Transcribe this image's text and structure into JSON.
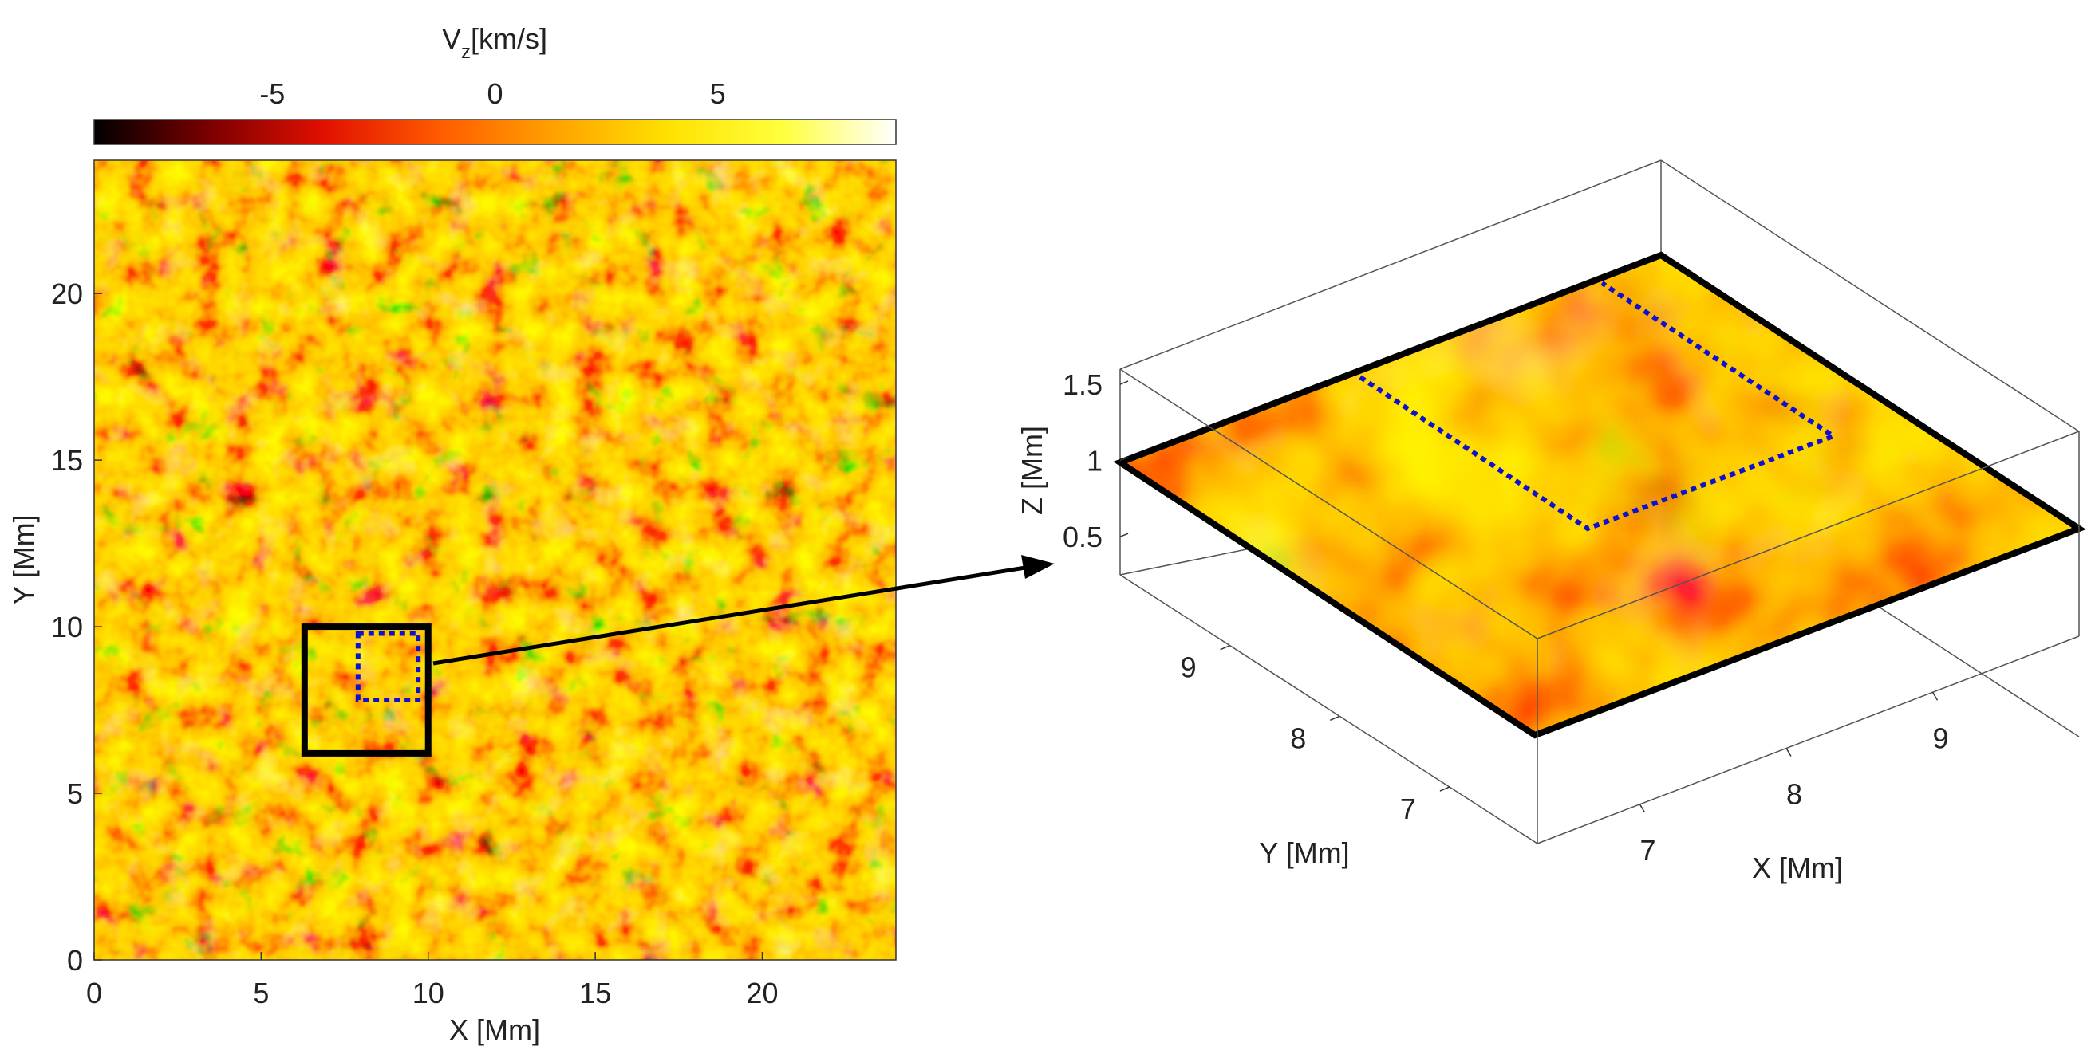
{
  "colorbar": {
    "label_main": "V",
    "label_sub": "z",
    "label_unit": "[km/s]",
    "min": -9,
    "max": 9,
    "ticks": [
      -5,
      0,
      5
    ],
    "colors": [
      "#000000",
      "#7a0000",
      "#e10f00",
      "#ff5a00",
      "#ffa000",
      "#ffe100",
      "#ffff3c",
      "#ffffff"
    ]
  },
  "chart_data": [
    {
      "type": "heatmap",
      "title": "",
      "xlabel": "X [Mm]",
      "ylabel": "Y [Mm]",
      "xlim": [
        0,
        24
      ],
      "ylim": [
        0,
        24
      ],
      "xticks": [
        0,
        5,
        10,
        15,
        20
      ],
      "yticks": [
        0,
        5,
        10,
        15,
        20
      ],
      "colormap": "hot",
      "variable": "Vz [km/s]",
      "zoom_box": {
        "x": [
          6.3,
          10.0
        ],
        "y": [
          6.2,
          10.0
        ],
        "color": "#000000"
      },
      "dotted_box": {
        "x": [
          7.9,
          9.7
        ],
        "y": [
          7.8,
          9.8
        ],
        "color": "#1010d0"
      }
    },
    {
      "type": "heatmap",
      "projection": "3d",
      "title": "",
      "xlabel": "X [Mm]",
      "ylabel": "Y [Mm]",
      "zlabel": "Z [Mm]",
      "xlim": [
        6.3,
        10.0
      ],
      "ylim": [
        6.2,
        10.0
      ],
      "zlim": [
        0.25,
        1.6
      ],
      "xticks": [
        7,
        8,
        9
      ],
      "yticks": [
        7,
        8,
        9
      ],
      "zticks": [
        "0.5",
        "1",
        "1.5"
      ],
      "slice_z": 1.0,
      "dotted_box": {
        "x": [
          7.9,
          9.7
        ],
        "y": [
          7.8,
          9.8
        ]
      }
    }
  ]
}
